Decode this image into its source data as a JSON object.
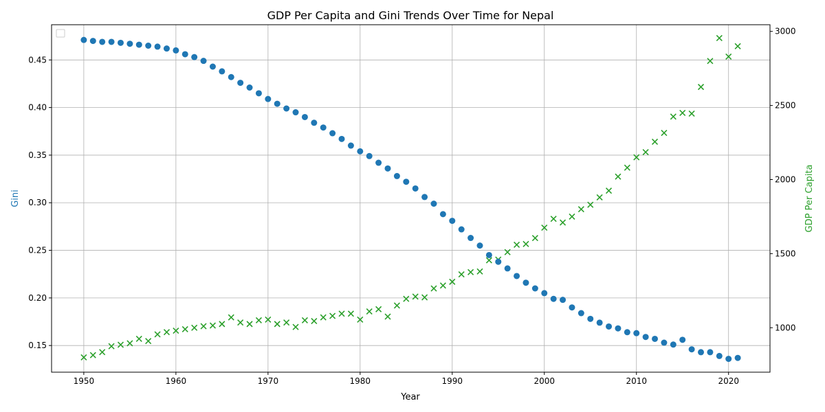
{
  "chart_data": {
    "type": "scatter",
    "title": "GDP Per Capita and Gini Trends Over Time for Nepal",
    "xlabel": "Year",
    "ylabel_left": "Gini",
    "ylabel_right": "GDP Per Capita",
    "xlim": [
      1946.5,
      2024.5
    ],
    "ylim_left": [
      0.122,
      0.487
    ],
    "ylim_right": [
      700,
      3045
    ],
    "x_ticks": [
      1950,
      1960,
      1970,
      1980,
      1990,
      2000,
      2010,
      2020
    ],
    "y_ticks_left": [
      0.15,
      0.2,
      0.25,
      0.3,
      0.35,
      0.4,
      0.45
    ],
    "y_ticks_right": [
      1000,
      1500,
      2000,
      2500,
      3000
    ],
    "grid": true,
    "legend": "top-left (empty)",
    "colors": {
      "gini": "#1f77b4",
      "gdp": "#2ca02c"
    },
    "series": [
      {
        "axis": "left",
        "marker": "circle",
        "x": [
          1950,
          1951,
          1952,
          1953,
          1954,
          1955,
          1956,
          1957,
          1958,
          1959,
          1960,
          1961,
          1962,
          1963,
          1964,
          1965,
          1966,
          1967,
          1968,
          1969,
          1970,
          1971,
          1972,
          1973,
          1974,
          1975,
          1976,
          1977,
          1978,
          1979,
          1980,
          1981,
          1982,
          1983,
          1984,
          1985,
          1986,
          1987,
          1988,
          1989,
          1990,
          1991,
          1992,
          1993,
          1994,
          1995,
          1996,
          1997,
          1998,
          1999,
          2000,
          2001,
          2002,
          2003,
          2004,
          2005,
          2006,
          2007,
          2008,
          2009,
          2010,
          2011,
          2012,
          2013,
          2014,
          2015,
          2016,
          2017,
          2018,
          2019,
          2020,
          2021
        ],
        "values": [
          0.471,
          0.47,
          0.469,
          0.469,
          0.468,
          0.467,
          0.466,
          0.465,
          0.464,
          0.462,
          0.46,
          0.456,
          0.453,
          0.449,
          0.443,
          0.438,
          0.432,
          0.426,
          0.421,
          0.415,
          0.409,
          0.404,
          0.399,
          0.395,
          0.39,
          0.384,
          0.379,
          0.373,
          0.367,
          0.36,
          0.354,
          0.349,
          0.342,
          0.336,
          0.328,
          0.322,
          0.315,
          0.306,
          0.299,
          0.288,
          0.281,
          0.272,
          0.263,
          0.255,
          0.245,
          0.238,
          0.231,
          0.223,
          0.216,
          0.21,
          0.205,
          0.199,
          0.198,
          0.19,
          0.184,
          0.178,
          0.174,
          0.17,
          0.168,
          0.164,
          0.163,
          0.159,
          0.157,
          0.153,
          0.151,
          0.156,
          0.146,
          0.143,
          0.143,
          0.139,
          0.136,
          0.137
        ]
      },
      {
        "axis": "right",
        "marker": "x",
        "x": [
          1950,
          1951,
          1952,
          1953,
          1954,
          1955,
          1956,
          1957,
          1958,
          1959,
          1960,
          1961,
          1962,
          1963,
          1964,
          1965,
          1966,
          1967,
          1968,
          1969,
          1970,
          1971,
          1972,
          1973,
          1974,
          1975,
          1976,
          1977,
          1978,
          1979,
          1980,
          1981,
          1982,
          1983,
          1984,
          1985,
          1986,
          1987,
          1988,
          1989,
          1990,
          1991,
          1992,
          1993,
          1994,
          1995,
          1996,
          1997,
          1998,
          1999,
          2000,
          2001,
          2002,
          2003,
          2004,
          2005,
          2006,
          2007,
          2008,
          2009,
          2010,
          2011,
          2012,
          2013,
          2014,
          2015,
          2016,
          2017,
          2018,
          2019,
          2020,
          2021
        ],
        "values": [
          800,
          815,
          835,
          875,
          885,
          895,
          925,
          910,
          955,
          970,
          980,
          990,
          1000,
          1010,
          1015,
          1025,
          1070,
          1035,
          1025,
          1050,
          1055,
          1025,
          1035,
          1005,
          1050,
          1045,
          1070,
          1080,
          1095,
          1095,
          1055,
          1110,
          1125,
          1075,
          1150,
          1195,
          1210,
          1205,
          1265,
          1285,
          1310,
          1360,
          1375,
          1380,
          1455,
          1460,
          1510,
          1560,
          1565,
          1605,
          1675,
          1735,
          1710,
          1750,
          1800,
          1830,
          1880,
          1925,
          2020,
          2080,
          2150,
          2185,
          2255,
          2315,
          2425,
          2450,
          2445,
          2625,
          2800,
          2955,
          2830,
          2900
        ]
      }
    ]
  }
}
